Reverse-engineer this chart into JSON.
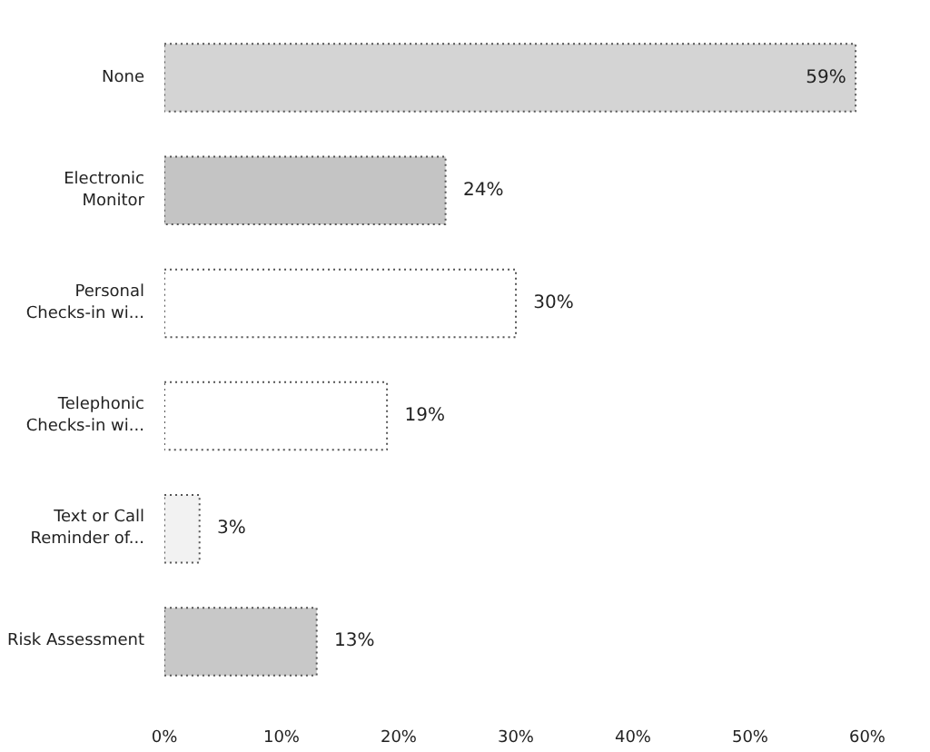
{
  "chart_data": {
    "type": "bar",
    "orientation": "horizontal",
    "categories": [
      "None",
      "Electronic Monitor",
      "Personal Checks-in wi...",
      "Telephonic Checks-in wi...",
      "Text or Call Reminder of...",
      "Risk Assessment"
    ],
    "values": [
      59,
      24,
      30,
      19,
      3,
      13
    ],
    "colors": [
      "#d4d4d4",
      "#c4c4c4",
      "#ffffff",
      "#ffffff",
      "#f2f2f2",
      "#c8c8c8"
    ],
    "value_labels": [
      "59%",
      "24%",
      "30%",
      "19%",
      "3%",
      "13%"
    ],
    "xlim": [
      0,
      60
    ],
    "xticks": [
      {
        "value": 0,
        "label": "0%"
      },
      {
        "value": 10,
        "label": "10%"
      },
      {
        "value": 20,
        "label": "20%"
      },
      {
        "value": 30,
        "label": "30%"
      },
      {
        "value": 40,
        "label": "40%"
      },
      {
        "value": 50,
        "label": "50%"
      },
      {
        "value": 60,
        "label": "60%"
      }
    ],
    "grid": false
  }
}
